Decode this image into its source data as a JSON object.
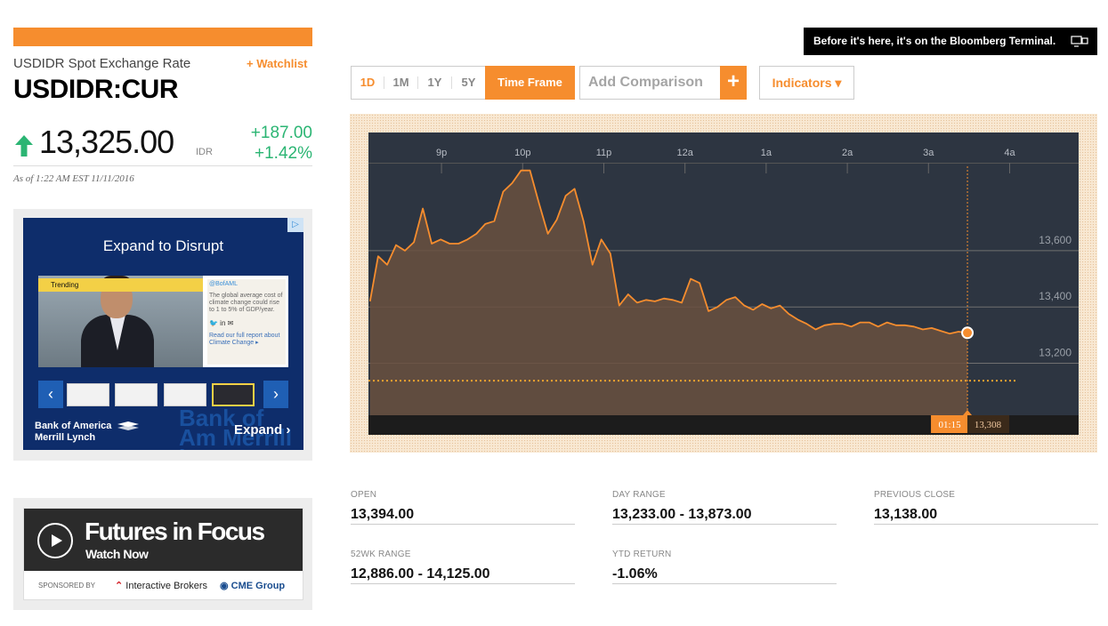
{
  "quote": {
    "name": "USDIDR Spot Exchange Rate",
    "watchlist": "+ Watchlist",
    "ticker": "USDIDR:CUR",
    "price": "13,325.00",
    "currency": "IDR",
    "change_abs": "+187.00",
    "change_pct": "+1.42%",
    "as_of": "As of 1:22 AM EST 11/11/2016",
    "direction": "up",
    "up_color": "#2bb573"
  },
  "ad1": {
    "title": "Expand to Disrupt",
    "adchoice": "▷",
    "trending": "Trending",
    "handle": "@BofAML",
    "tweet": "The global average cost of climate change could rise to 1 to 5% of GDP/year.",
    "social": "🐦 in ✉",
    "readmore": "Read our full report about Climate Change ▸",
    "prev": "‹",
    "next": "›",
    "brand": "Bank of America Merrill Lynch",
    "brand_line1": "Bank of America",
    "brand_line2": "Merrill Lynch",
    "watermark": "Bank of Am Merrill Lyn",
    "expand": "Expand ›"
  },
  "ad2": {
    "title": "Futures in Focus",
    "watch": "Watch Now",
    "sponsored": "SPONSORED BY",
    "sponsor1": "Interactive Brokers",
    "sponsor2": "CME Group",
    "sponsor1_mark": "⌃"
  },
  "banner": {
    "text": "Before it's here, it's on the Bloomberg Terminal."
  },
  "toolbar": {
    "ranges": [
      "1D",
      "1M",
      "1Y",
      "5Y"
    ],
    "timeframe": "Time Frame",
    "compare_placeholder": "Add Comparison",
    "compare_add": "+",
    "indicators": "Indicators ▾",
    "accent": "#f68d2e"
  },
  "chart_data": {
    "type": "area",
    "x_ticks": [
      "9p",
      "10p",
      "11p",
      "12a",
      "1a",
      "2a",
      "3a",
      "4a"
    ],
    "y_ticks": [
      13200,
      13400,
      13600
    ],
    "y_tick_labels": [
      "13,200",
      "13,400",
      "13,600"
    ],
    "ylim": [
      13015,
      13900
    ],
    "xlim": [
      20.1,
      4.85
    ],
    "previous_close": 13138,
    "crosshair": {
      "time": "01:15",
      "value": "13,308"
    },
    "last_point": 13308,
    "series": [
      {
        "values": [
          [
            20.12,
            13420
          ],
          [
            20.22,
            13580
          ],
          [
            20.33,
            13550
          ],
          [
            20.44,
            13620
          ],
          [
            20.55,
            13600
          ],
          [
            20.66,
            13630
          ],
          [
            20.77,
            13750
          ],
          [
            20.88,
            13625
          ],
          [
            20.99,
            13640
          ],
          [
            21.1,
            13625
          ],
          [
            21.21,
            13625
          ],
          [
            21.32,
            13640
          ],
          [
            21.43,
            13660
          ],
          [
            21.54,
            13695
          ],
          [
            21.65,
            13705
          ],
          [
            21.76,
            13810
          ],
          [
            21.87,
            13840
          ],
          [
            21.98,
            13885
          ],
          [
            22.09,
            13885
          ],
          [
            22.2,
            13770
          ],
          [
            22.31,
            13660
          ],
          [
            22.42,
            13710
          ],
          [
            22.53,
            13795
          ],
          [
            22.64,
            13820
          ],
          [
            22.75,
            13705
          ],
          [
            22.86,
            13550
          ],
          [
            22.97,
            13640
          ],
          [
            23.08,
            13590
          ],
          [
            23.19,
            13405
          ],
          [
            23.3,
            13445
          ],
          [
            23.41,
            13415
          ],
          [
            23.52,
            13425
          ],
          [
            23.63,
            13420
          ],
          [
            23.74,
            13430
          ],
          [
            23.85,
            13425
          ],
          [
            23.96,
            13415
          ],
          [
            24.07,
            13500
          ],
          [
            24.18,
            13485
          ],
          [
            24.29,
            13385
          ],
          [
            24.4,
            13400
          ],
          [
            24.51,
            13425
          ],
          [
            24.62,
            13435
          ],
          [
            24.73,
            13405
          ],
          [
            24.84,
            13390
          ],
          [
            24.95,
            13410
          ],
          [
            25.06,
            13395
          ],
          [
            25.17,
            13405
          ],
          [
            25.28,
            13375
          ],
          [
            25.39,
            13355
          ],
          [
            25.5,
            13340
          ],
          [
            25.61,
            13320
          ],
          [
            25.72,
            13335
          ],
          [
            25.83,
            13340
          ],
          [
            25.94,
            13340
          ],
          [
            26.05,
            13330
          ],
          [
            26.16,
            13345
          ],
          [
            26.27,
            13345
          ],
          [
            26.38,
            13330
          ],
          [
            26.49,
            13345
          ],
          [
            26.6,
            13335
          ],
          [
            26.71,
            13335
          ],
          [
            26.82,
            13330
          ],
          [
            26.93,
            13320
          ],
          [
            27.04,
            13325
          ],
          [
            27.15,
            13315
          ],
          [
            27.26,
            13305
          ],
          [
            27.37,
            13312
          ],
          [
            27.48,
            13308
          ]
        ]
      }
    ],
    "colors": {
      "background": "#2d3541",
      "line": "#f68d2e",
      "fill": "#6a5040",
      "grid": "#707070",
      "prev_close": "#f0a22f"
    }
  },
  "stats": {
    "open_label": "OPEN",
    "open_value": "13,394.00",
    "day_range_label": "DAY RANGE",
    "day_range_value": "13,233.00 - 13,873.00",
    "prev_close_label": "PREVIOUS CLOSE",
    "prev_close_value": "13,138.00",
    "range52_label": "52WK RANGE",
    "range52_value": "12,886.00 - 14,125.00",
    "ytd_label": "YTD RETURN",
    "ytd_value": "-1.06%"
  }
}
